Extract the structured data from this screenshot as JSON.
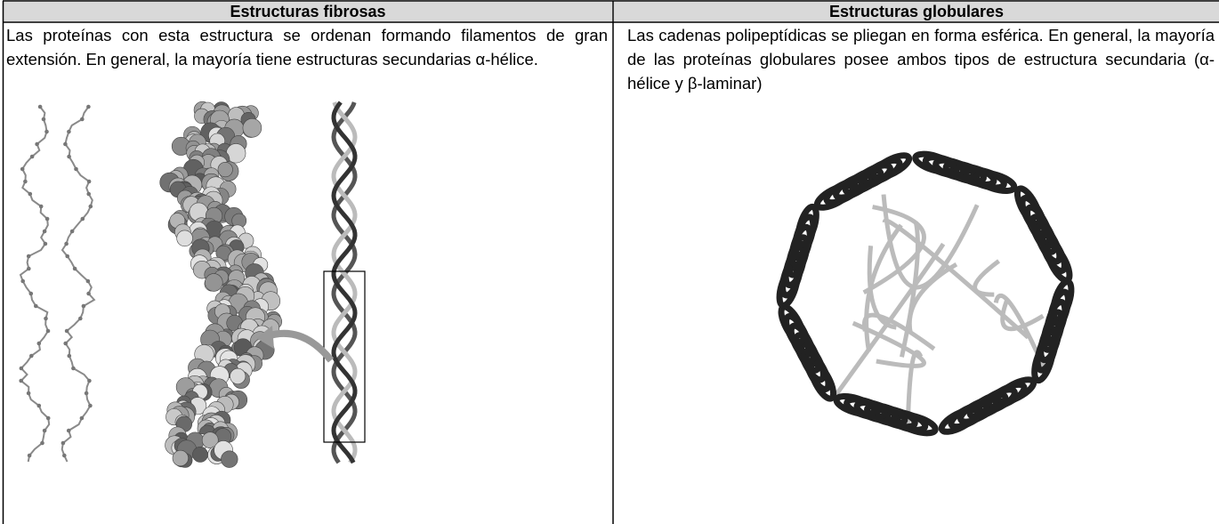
{
  "table": {
    "headers": [
      "Estructuras fibrosas",
      "Estructuras globulares"
    ],
    "rows": [
      [
        "Las proteínas con esta estructura se ordenan formando filamentos de gran extensión. En general, la mayoría tiene estructuras secundarias α-hélice.",
        "Las cadenas polipeptídicas se pliegan en forma esférica. En general, la mayoría de las proteínas globulares posee ambos tipos de estructura secundaria (α-hélice y β-laminar)"
      ]
    ]
  }
}
